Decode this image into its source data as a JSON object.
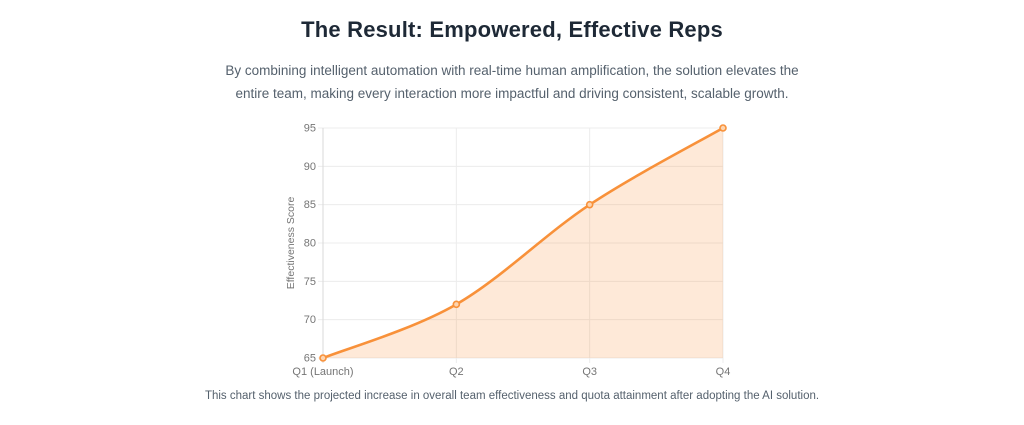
{
  "page": {
    "title": "The Result: Empowered, Effective Reps",
    "subtitle": "By combining intelligent automation with real-time human amplification, the solution elevates the entire team, making every interaction more impactful and driving consistent, scalable growth.",
    "caption": "This chart shows the projected increase in overall team effectiveness and quota attainment after adopting the AI solution."
  },
  "chart_data": {
    "type": "area",
    "categories": [
      "Q1 (Launch)",
      "Q2",
      "Q3",
      "Q4"
    ],
    "values": [
      65,
      72,
      85,
      95
    ],
    "title": "",
    "xlabel": "",
    "ylabel": "Effectiveness Score",
    "ylim": [
      65,
      95
    ],
    "ytick_step": 5,
    "grid": true,
    "line_smooth": true,
    "legend": "none",
    "colors": {
      "line": "#f8913a",
      "area": "rgba(248,145,58,0.2)",
      "point_fill": "#fcd4b0",
      "grid": "#ececec",
      "axis": "#d9d9d9",
      "tick_text": "#757575"
    }
  }
}
